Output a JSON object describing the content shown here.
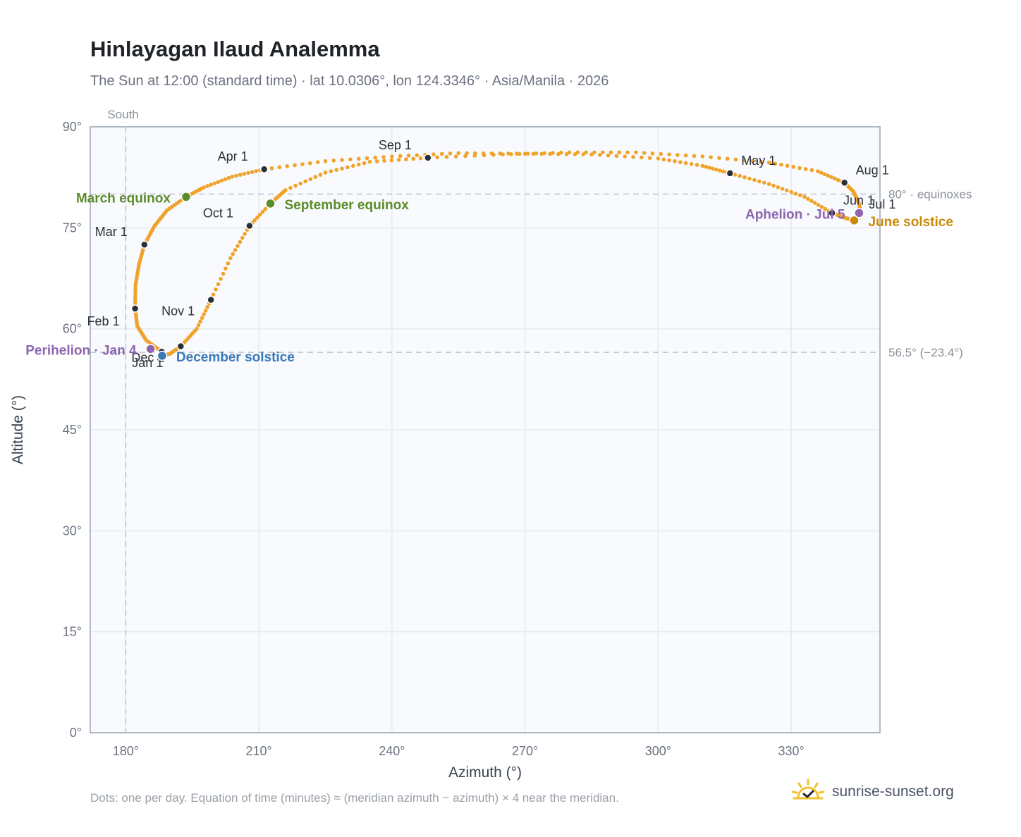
{
  "title": "Hinlayagan Ilaud Analemma",
  "subtitle": "The Sun at 12:00 (standard time) · lat 10.0306°, lon 124.3346° · Asia/Manila · 2026",
  "footnote": "Dots: one per day. Equation of time (minutes) ≈ (meridian azimuth − azimuth) × 4 near the meridian.",
  "brand": {
    "text": "sunrise-sunset.org",
    "icon": "sun-checkmark-logo-icon"
  },
  "colors": {
    "path": "#f0a32a",
    "month_dot": "#2b3038",
    "equinox": "#5b8c2a",
    "june_solstice": "#c98a0a",
    "december_solstice": "#3a78b8",
    "perihelion_aphelion": "#8e65ad",
    "grid": "#e5e9ef",
    "plot_bg": "#f8fafd",
    "reference_line": "#b9c2cd"
  },
  "chart_data": {
    "type": "scatter",
    "title": "Hinlayagan Ilaud Analemma",
    "xlabel": "Azimuth (°)",
    "ylabel": "Altitude (°)",
    "xlim": [
      172,
      350
    ],
    "ylim": [
      0,
      90
    ],
    "xticks": [
      180,
      210,
      240,
      270,
      300,
      330
    ],
    "xtick_labels": [
      "180°",
      "210°",
      "240°",
      "270°",
      "300°",
      "330°"
    ],
    "yticks": [
      0,
      15,
      30,
      45,
      60,
      75,
      90
    ],
    "ytick_labels": [
      "0°",
      "15°",
      "30°",
      "45°",
      "60°",
      "75°",
      "90°"
    ],
    "grid": true,
    "reference_lines": [
      {
        "orientation": "vertical",
        "value": 180,
        "label": "South"
      },
      {
        "orientation": "horizontal",
        "value": 80,
        "label": "80° · equinoxes"
      },
      {
        "orientation": "horizontal",
        "value": 56.5,
        "label": "56.5° (−23.4°)"
      }
    ],
    "month_markers": [
      {
        "label": "Jan 1",
        "azimuth": 188.1,
        "altitude": 56.6
      },
      {
        "label": "Feb 1",
        "azimuth": 182.1,
        "altitude": 63.0
      },
      {
        "label": "Mar 1",
        "azimuth": 184.2,
        "altitude": 72.5
      },
      {
        "label": "Apr 1",
        "azimuth": 211.2,
        "altitude": 83.7
      },
      {
        "label": "May 1",
        "azimuth": 316.2,
        "altitude": 83.1
      },
      {
        "label": "Jun 1",
        "azimuth": 339.2,
        "altitude": 77.2
      },
      {
        "label": "Jul 1",
        "azimuth": 345.3,
        "altitude": 77.0
      },
      {
        "label": "Aug 1",
        "azimuth": 342.0,
        "altitude": 81.7
      },
      {
        "label": "Sep 1",
        "azimuth": 248.1,
        "altitude": 85.4
      },
      {
        "label": "Oct 1",
        "azimuth": 207.9,
        "altitude": 75.3
      },
      {
        "label": "Nov 1",
        "azimuth": 199.2,
        "altitude": 64.3
      },
      {
        "label": "Dec 1",
        "azimuth": 192.4,
        "altitude": 57.4
      }
    ],
    "events": [
      {
        "label": "March equinox",
        "azimuth": 193.6,
        "altitude": 79.6,
        "color_key": "equinox"
      },
      {
        "label": "September equinox",
        "azimuth": 212.6,
        "altitude": 78.6,
        "color_key": "equinox"
      },
      {
        "label": "June solstice",
        "azimuth": 344.2,
        "altitude": 76.1,
        "color_key": "june_solstice"
      },
      {
        "label": "December solstice",
        "azimuth": 188.2,
        "altitude": 56.0,
        "color_key": "december_solstice"
      },
      {
        "label": "Perihelion · Jan 4",
        "azimuth": 185.6,
        "altitude": 57.0,
        "color_key": "perihelion_aphelion"
      },
      {
        "label": "Aphelion · Jul 5",
        "azimuth": 345.3,
        "altitude": 77.2,
        "color_key": "perihelion_aphelion"
      }
    ],
    "series": [
      {
        "points_note_free": true,
        "points": [
          [
            188.1,
            56.6
          ],
          [
            184.6,
            58.3
          ],
          [
            182.6,
            60.4
          ],
          [
            182.1,
            63.0
          ],
          [
            182.2,
            66.5
          ],
          [
            183.0,
            69.6
          ],
          [
            184.2,
            72.5
          ],
          [
            186.5,
            75.3
          ],
          [
            189.3,
            77.6
          ],
          [
            193.6,
            79.6
          ],
          [
            197.6,
            81.0
          ],
          [
            204.0,
            82.6
          ],
          [
            211.2,
            83.7
          ],
          [
            225.0,
            84.9
          ],
          [
            240.0,
            85.6
          ],
          [
            255.0,
            86.1
          ],
          [
            270.0,
            86.0
          ],
          [
            285.0,
            85.9
          ],
          [
            300.0,
            85.3
          ],
          [
            310.0,
            84.2
          ],
          [
            316.2,
            83.1
          ],
          [
            325.0,
            81.5
          ],
          [
            333.0,
            79.6
          ],
          [
            339.2,
            77.2
          ],
          [
            342.0,
            76.5
          ],
          [
            344.2,
            76.1
          ],
          [
            345.3,
            76.6
          ],
          [
            345.6,
            77.3
          ],
          [
            345.3,
            78.6
          ],
          [
            344.0,
            80.4
          ],
          [
            342.0,
            81.7
          ],
          [
            336.0,
            83.4
          ],
          [
            325.0,
            84.7
          ],
          [
            310.0,
            85.6
          ],
          [
            295.0,
            86.2
          ],
          [
            280.0,
            86.2
          ],
          [
            265.0,
            85.9
          ],
          [
            248.1,
            85.4
          ],
          [
            235.0,
            84.8
          ],
          [
            225.0,
            83.2
          ],
          [
            216.0,
            80.6
          ],
          [
            212.6,
            78.6
          ],
          [
            207.9,
            75.3
          ],
          [
            203.6,
            70.5
          ],
          [
            199.2,
            64.3
          ],
          [
            196.0,
            60.0
          ],
          [
            192.4,
            57.4
          ],
          [
            190.0,
            56.3
          ],
          [
            188.2,
            56.0
          ],
          [
            188.1,
            56.6
          ]
        ]
      }
    ]
  }
}
